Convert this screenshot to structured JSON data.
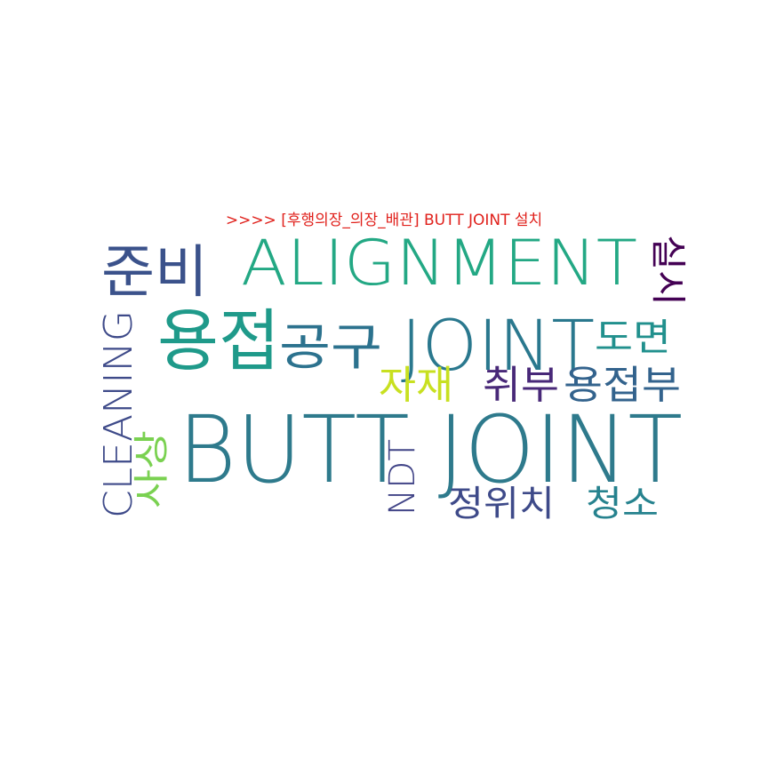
{
  "title": ">>>> [후행의장_의장_배관] BUTT JOINT 설치",
  "colors": {
    "title": "#e0201b",
    "background": "#ffffff"
  },
  "words": [
    {
      "text": "BUTT JOINT",
      "color": "#2e7a8c"
    },
    {
      "text": "ALIGNMENT",
      "color": "#23a884"
    },
    {
      "text": "JOINT",
      "color": "#2a788e"
    },
    {
      "text": "용접",
      "color": "#1f9a8a"
    },
    {
      "text": "준비",
      "color": "#3b528b"
    },
    {
      "text": "공구",
      "color": "#2c728e"
    },
    {
      "text": "도면",
      "color": "#21908d"
    },
    {
      "text": "자재",
      "color": "#c8e020"
    },
    {
      "text": "취부",
      "color": "#482878"
    },
    {
      "text": "용접부",
      "color": "#33638d"
    },
    {
      "text": "CLEANING",
      "color": "#3e4a89"
    },
    {
      "text": "사상",
      "color": "#7ad151"
    },
    {
      "text": "NDT",
      "color": "#414487"
    },
    {
      "text": "정위치",
      "color": "#3e4a89"
    },
    {
      "text": "청소",
      "color": "#26828e"
    },
    {
      "text": "실시",
      "color": "#440154"
    }
  ]
}
